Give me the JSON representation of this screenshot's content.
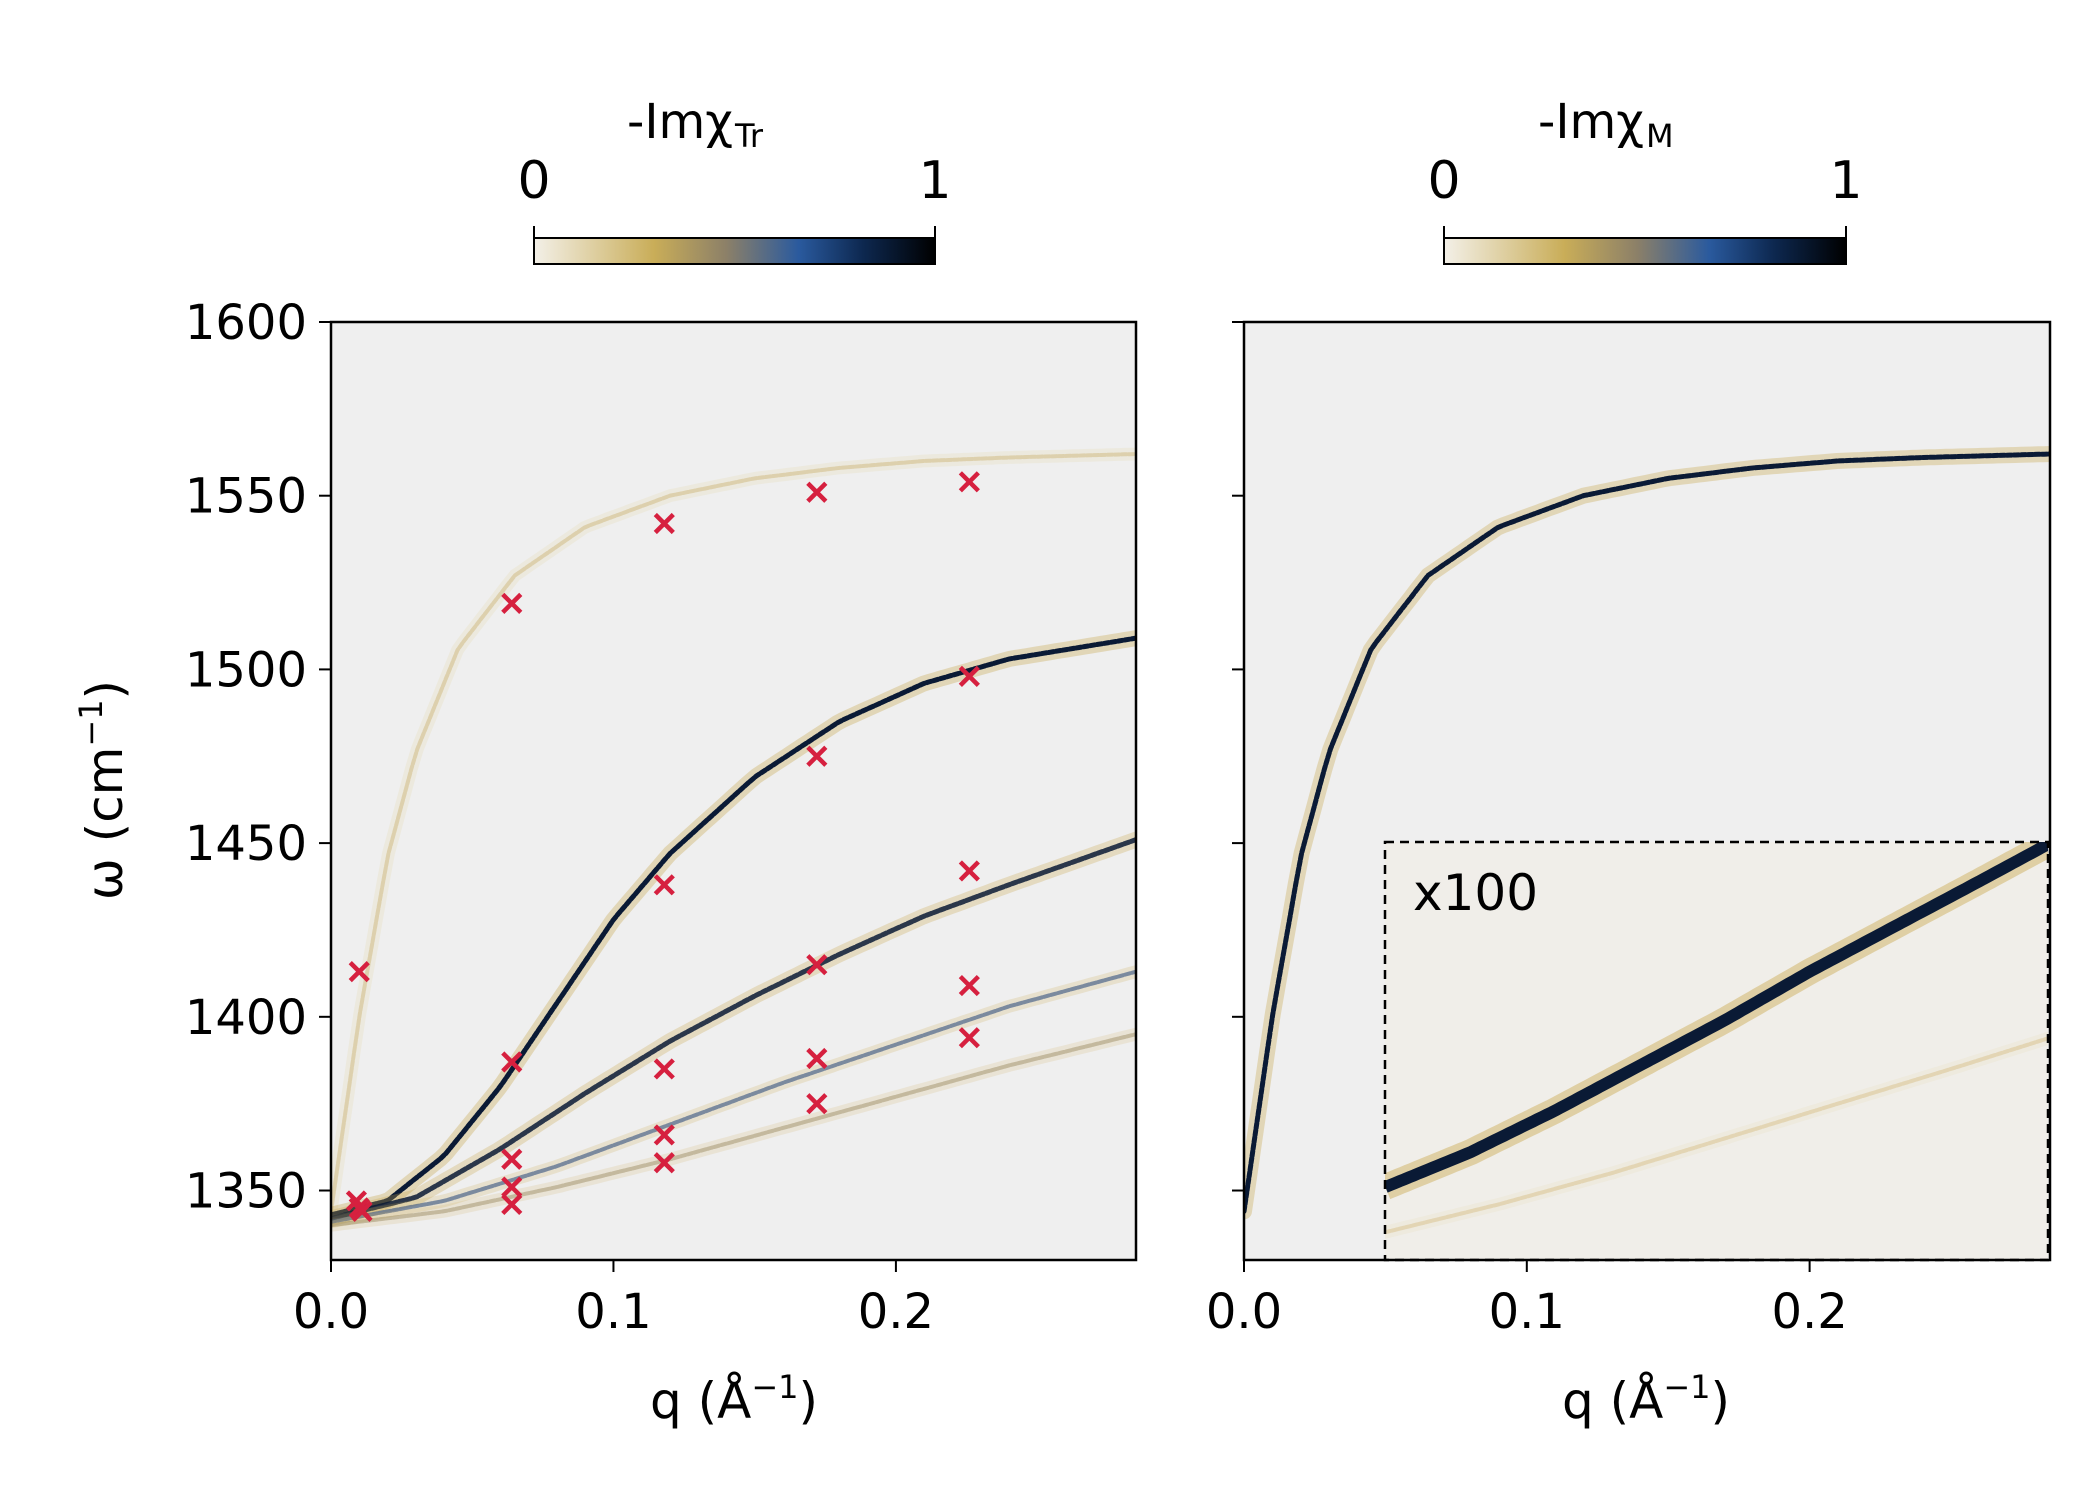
{
  "chart_data": [
    {
      "type": "heatmap",
      "panel": "left",
      "colorbar": {
        "title_main": "-Imχ",
        "title_sub": "Tr",
        "min_label": "0",
        "max_label": "1",
        "range": [
          0,
          1
        ]
      },
      "xlabel_main": "q (Å",
      "xlabel_sup": "−1",
      "xlabel_end": ")",
      "ylabel_main": "ω (cm",
      "ylabel_sup": "−1",
      "ylabel_end": ")",
      "xlim": [
        0,
        0.285
      ],
      "ylim": [
        1330,
        1600
      ],
      "xticks": [
        0.0,
        0.1,
        0.2
      ],
      "xtick_labels": [
        "0.0",
        "0.1",
        "0.2"
      ],
      "yticks": [
        1350,
        1400,
        1450,
        1500,
        1550,
        1600
      ],
      "ytick_labels": [
        "1350",
        "1400",
        "1450",
        "1500",
        "1550",
        "1600"
      ],
      "bands": [
        {
          "name": "band-1",
          "x": [
            0,
            0.01,
            0.02,
            0.03,
            0.045,
            0.065,
            0.09,
            0.12,
            0.15,
            0.18,
            0.21,
            0.24,
            0.285
          ],
          "y": [
            1344,
            1400,
            1446,
            1476,
            1506,
            1527,
            1541,
            1550,
            1555,
            1558,
            1560,
            1561,
            1562
          ],
          "intensity": 0.22
        },
        {
          "name": "band-2",
          "x": [
            0,
            0.02,
            0.04,
            0.06,
            0.08,
            0.1,
            0.12,
            0.15,
            0.18,
            0.21,
            0.24,
            0.285
          ],
          "y": [
            1343,
            1347,
            1360,
            1380,
            1404,
            1428,
            1447,
            1469,
            1485,
            1496,
            1503,
            1509
          ],
          "intensity": 1.0
        },
        {
          "name": "band-3",
          "x": [
            0,
            0.03,
            0.06,
            0.09,
            0.12,
            0.15,
            0.18,
            0.21,
            0.24,
            0.285
          ],
          "y": [
            1342,
            1348,
            1362,
            1378,
            1393,
            1406,
            1418,
            1429,
            1438,
            1451
          ],
          "intensity": 0.85
        },
        {
          "name": "band-4",
          "x": [
            0,
            0.04,
            0.08,
            0.12,
            0.16,
            0.2,
            0.24,
            0.285
          ],
          "y": [
            1341,
            1347,
            1357,
            1369,
            1381,
            1392,
            1403,
            1413
          ],
          "intensity": 0.6
        },
        {
          "name": "band-5",
          "x": [
            0,
            0.04,
            0.08,
            0.12,
            0.16,
            0.2,
            0.24,
            0.285
          ],
          "y": [
            1340,
            1344,
            1351,
            1359,
            1368,
            1377,
            1386,
            1395
          ],
          "intensity": 0.4
        }
      ],
      "markers": {
        "symbol": "x",
        "color": "#d6203f",
        "points": [
          [
            0.01,
            1413
          ],
          [
            0.009,
            1347
          ],
          [
            0.01,
            1345
          ],
          [
            0.011,
            1344
          ],
          [
            0.064,
            1519
          ],
          [
            0.064,
            1387
          ],
          [
            0.064,
            1359
          ],
          [
            0.064,
            1351
          ],
          [
            0.064,
            1346
          ],
          [
            0.118,
            1542
          ],
          [
            0.118,
            1438
          ],
          [
            0.118,
            1385
          ],
          [
            0.118,
            1366
          ],
          [
            0.118,
            1358
          ],
          [
            0.172,
            1551
          ],
          [
            0.172,
            1475
          ],
          [
            0.172,
            1415
          ],
          [
            0.172,
            1388
          ],
          [
            0.172,
            1375
          ],
          [
            0.226,
            1554
          ],
          [
            0.226,
            1498
          ],
          [
            0.226,
            1442
          ],
          [
            0.226,
            1409
          ],
          [
            0.226,
            1394
          ]
        ]
      }
    },
    {
      "type": "heatmap",
      "panel": "right",
      "colorbar": {
        "title_main": "-Imχ",
        "title_sub": "M",
        "min_label": "0",
        "max_label": "1",
        "range": [
          0,
          1
        ]
      },
      "xlabel_main": "q (Å",
      "xlabel_sup": "−1",
      "xlabel_end": ")",
      "xlim": [
        0,
        0.285
      ],
      "ylim": [
        1330,
        1600
      ],
      "xticks": [
        0.0,
        0.1,
        0.2
      ],
      "xtick_labels": [
        "0.0",
        "0.1",
        "0.2"
      ],
      "yticks": [
        1350,
        1400,
        1450,
        1500,
        1550,
        1600
      ],
      "bands": [
        {
          "name": "band-1",
          "x": [
            0,
            0.01,
            0.02,
            0.03,
            0.045,
            0.065,
            0.09,
            0.12,
            0.15,
            0.18,
            0.21,
            0.24,
            0.285
          ],
          "y": [
            1344,
            1400,
            1446,
            1476,
            1506,
            1527,
            1541,
            1550,
            1555,
            1558,
            1560,
            1561,
            1562
          ],
          "intensity": 1.0
        }
      ],
      "inset": {
        "label": "x100",
        "x_range": [
          0.05,
          0.285
        ],
        "y_range": [
          1330,
          1450
        ],
        "bands": [
          {
            "name": "inset-band-strong",
            "x": [
              0.05,
              0.08,
              0.11,
              0.14,
              0.17,
              0.2,
              0.23,
              0.26,
              0.285
            ],
            "y": [
              1351,
              1361,
              1373,
              1386,
              1399,
              1413,
              1426,
              1439,
              1450
            ],
            "intensity": 1.0
          },
          {
            "name": "inset-band-weak",
            "x": [
              0.05,
              0.09,
              0.13,
              0.17,
              0.21,
              0.25,
              0.285
            ],
            "y": [
              1338,
              1346,
              1355,
              1365,
              1375,
              1385,
              1394
            ],
            "intensity": 0.25
          }
        ]
      }
    }
  ]
}
